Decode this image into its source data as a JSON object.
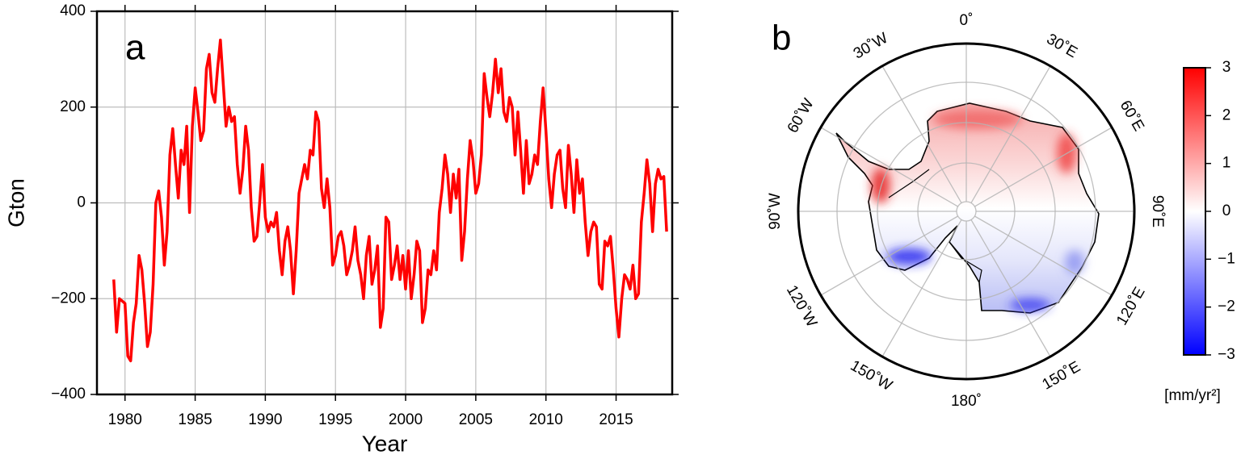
{
  "chart_data": [
    {
      "type": "line",
      "title": "a",
      "xlabel": "Year",
      "ylabel": "Gton",
      "color": "#ff0000",
      "grid": true,
      "xlim": [
        1978,
        2019
      ],
      "xticks": [
        1980,
        1985,
        1990,
        1995,
        2000,
        2005,
        2010,
        2015
      ],
      "ylim": [
        -400,
        400
      ],
      "yticks": [
        {
          "value": -400,
          "label": "−400"
        },
        {
          "value": -200,
          "label": "−200"
        },
        0,
        200,
        400
      ],
      "x": [
        1979.2,
        1979.4,
        1979.6,
        1979.8,
        1980,
        1980.2,
        1980.4,
        1980.6,
        1980.8,
        1981,
        1981.2,
        1981.4,
        1981.6,
        1981.8,
        1982,
        1982.2,
        1982.4,
        1982.6,
        1982.8,
        1983,
        1983.2,
        1983.4,
        1983.6,
        1983.8,
        1984,
        1984.2,
        1984.4,
        1984.6,
        1984.8,
        1985,
        1985.2,
        1985.4,
        1985.6,
        1985.8,
        1986,
        1986.2,
        1986.4,
        1986.6,
        1986.8,
        1987,
        1987.2,
        1987.4,
        1987.6,
        1987.8,
        1988,
        1988.2,
        1988.4,
        1988.6,
        1988.8,
        1989,
        1989.2,
        1989.4,
        1989.6,
        1989.8,
        1990,
        1990.2,
        1990.4,
        1990.6,
        1990.8,
        1991,
        1991.2,
        1991.4,
        1991.6,
        1991.8,
        1992,
        1992.2,
        1992.4,
        1992.6,
        1992.8,
        1993,
        1993.2,
        1993.4,
        1993.6,
        1993.8,
        1994,
        1994.2,
        1994.4,
        1994.6,
        1994.8,
        1995,
        1995.2,
        1995.4,
        1995.6,
        1995.8,
        1996,
        1996.2,
        1996.4,
        1996.6,
        1996.8,
        1997,
        1997.2,
        1997.4,
        1997.6,
        1997.8,
        1998,
        1998.2,
        1998.4,
        1998.6,
        1998.8,
        1999,
        1999.2,
        1999.4,
        1999.6,
        1999.8,
        2000,
        2000.2,
        2000.4,
        2000.6,
        2000.8,
        2001,
        2001.2,
        2001.4,
        2001.6,
        2001.8,
        2002,
        2002.2,
        2002.4,
        2002.6,
        2002.8,
        2003,
        2003.2,
        2003.4,
        2003.6,
        2003.8,
        2004,
        2004.2,
        2004.4,
        2004.6,
        2004.8,
        2005,
        2005.2,
        2005.4,
        2005.6,
        2005.8,
        2006,
        2006.2,
        2006.4,
        2006.6,
        2006.8,
        2007,
        2007.2,
        2007.4,
        2007.6,
        2007.8,
        2008,
        2008.2,
        2008.4,
        2008.6,
        2008.8,
        2009,
        2009.2,
        2009.4,
        2009.6,
        2009.8,
        2010,
        2010.2,
        2010.4,
        2010.6,
        2010.8,
        2011,
        2011.2,
        2011.4,
        2011.6,
        2011.8,
        2012,
        2012.2,
        2012.4,
        2012.6,
        2012.8,
        2013,
        2013.2,
        2013.4,
        2013.6,
        2013.8,
        2014,
        2014.2,
        2014.4,
        2014.6,
        2014.8,
        2015,
        2015.2,
        2015.4,
        2015.6,
        2015.8,
        2016,
        2016.2,
        2016.4,
        2016.6,
        2016.8,
        2017,
        2017.2,
        2017.4,
        2017.6,
        2017.8,
        2018,
        2018.2,
        2018.4,
        2018.6
      ],
      "values": [
        -160,
        -270,
        -200,
        -205,
        -210,
        -320,
        -330,
        -250,
        -210,
        -110,
        -140,
        -210,
        -300,
        -270,
        -170,
        0,
        25,
        -30,
        -130,
        -60,
        100,
        155,
        80,
        10,
        110,
        80,
        160,
        -20,
        160,
        240,
        190,
        130,
        150,
        280,
        310,
        230,
        210,
        280,
        340,
        250,
        160,
        200,
        170,
        180,
        80,
        20,
        70,
        160,
        110,
        -10,
        -80,
        -70,
        0,
        80,
        -30,
        -60,
        -40,
        -50,
        -20,
        -100,
        -150,
        -80,
        -50,
        -100,
        -190,
        -100,
        20,
        50,
        80,
        50,
        110,
        100,
        190,
        170,
        30,
        -10,
        50,
        -10,
        -130,
        -110,
        -70,
        -60,
        -90,
        -150,
        -130,
        -100,
        -50,
        -120,
        -150,
        -200,
        -110,
        -70,
        -170,
        -140,
        -90,
        -260,
        -220,
        -30,
        -40,
        -160,
        -130,
        -90,
        -160,
        -110,
        -180,
        -100,
        -200,
        -150,
        -80,
        -100,
        -250,
        -220,
        -140,
        -150,
        -100,
        -140,
        -20,
        30,
        100,
        60,
        -20,
        60,
        10,
        70,
        -120,
        -60,
        50,
        130,
        90,
        20,
        40,
        100,
        270,
        220,
        180,
        230,
        300,
        230,
        280,
        190,
        170,
        220,
        200,
        100,
        190,
        110,
        20,
        130,
        40,
        60,
        100,
        80,
        170,
        240,
        150,
        50,
        -10,
        60,
        100,
        110,
        30,
        -10,
        120,
        60,
        -20,
        90,
        20,
        50,
        -40,
        -110,
        -60,
        -40,
        -50,
        -170,
        -180,
        -80,
        -90,
        -70,
        -140,
        -220,
        -280,
        -200,
        -150,
        -160,
        -180,
        -130,
        -200,
        -190,
        -40,
        20,
        90,
        40,
        -60,
        40,
        70,
        50,
        55,
        -60
      ]
    },
    {
      "type": "map",
      "title": "b",
      "lonticks": [
        {
          "value": 0,
          "label": "0˚"
        },
        {
          "value": 30,
          "label": "30˚E"
        },
        {
          "value": 60,
          "label": "60˚E"
        },
        {
          "value": 90,
          "label": "90˚E"
        },
        {
          "value": 120,
          "label": "120˚E"
        },
        {
          "value": 150,
          "label": "150˚E"
        },
        {
          "value": 180,
          "label": "180˚"
        },
        {
          "value": -150,
          "label": "150˚W"
        },
        {
          "value": -120,
          "label": "120˚W"
        },
        {
          "value": -90,
          "label": "90˚W"
        },
        {
          "value": -60,
          "label": "60˚W"
        },
        {
          "value": -30,
          "label": "30˚W"
        }
      ],
      "colormap": [
        "#0000ff",
        "#ffffff",
        "#ff0000"
      ],
      "colorbar_lim": [
        -3,
        3
      ],
      "colorbar_ticks": [
        {
          "value": -3,
          "label": "−3"
        },
        {
          "value": -2,
          "label": "−2"
        },
        {
          "value": -1,
          "label": "−1"
        },
        0,
        1,
        2,
        3
      ],
      "colorbar_label": "[mm/yr²]"
    }
  ]
}
